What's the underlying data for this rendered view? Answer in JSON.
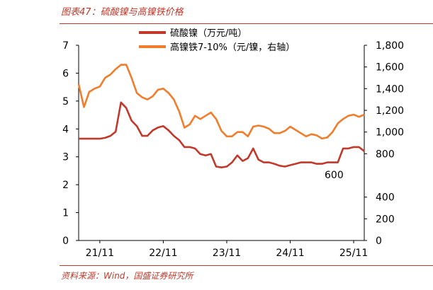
{
  "figure": {
    "title": "图表47：硫酸镍与高镍铁价格",
    "source": "资料来源：Wind，国盛证券研究所"
  },
  "chart_data": {
    "type": "line",
    "x_ticks": [
      "21/11",
      "22/11",
      "23/11",
      "24/11",
      "25/11"
    ],
    "x_range": [
      "2021-07",
      "2026-01"
    ],
    "y_left": {
      "range": [
        0,
        7
      ],
      "ticks": [
        "0",
        "1",
        "2",
        "3",
        "4",
        "5",
        "6",
        "7"
      ]
    },
    "y_right": {
      "range": [
        0,
        1800
      ],
      "ticks": [
        "0",
        "200",
        "400",
        "800",
        "1,000",
        "1,200",
        "1,400",
        "1,600",
        "1,800"
      ]
    },
    "grid": false,
    "legend_position": "top-center",
    "annotations": [
      {
        "text": "600"
      }
    ],
    "series": [
      {
        "name": "硫酸镍（万元/吨）",
        "axis": "left",
        "color": "#c0392b",
        "points": [
          [
            "2021-07",
            3.65
          ],
          [
            "2021-08",
            3.65
          ],
          [
            "2021-09",
            3.65
          ],
          [
            "2021-10",
            3.65
          ],
          [
            "2021-11",
            3.65
          ],
          [
            "2021-12",
            3.68
          ],
          [
            "2022-01",
            3.75
          ],
          [
            "2022-02",
            3.9
          ],
          [
            "2022-03",
            4.95
          ],
          [
            "2022-04",
            4.75
          ],
          [
            "2022-05",
            4.3
          ],
          [
            "2022-06",
            4.1
          ],
          [
            "2022-07",
            3.75
          ],
          [
            "2022-08",
            3.75
          ],
          [
            "2022-09",
            3.95
          ],
          [
            "2022-10",
            4.05
          ],
          [
            "2022-11",
            4.1
          ],
          [
            "2022-12",
            3.95
          ],
          [
            "2023-01",
            3.75
          ],
          [
            "2023-02",
            3.6
          ],
          [
            "2023-03",
            3.35
          ],
          [
            "2023-04",
            3.35
          ],
          [
            "2023-05",
            3.3
          ],
          [
            "2023-06",
            3.1
          ],
          [
            "2023-07",
            3.05
          ],
          [
            "2023-08",
            3.1
          ],
          [
            "2023-09",
            2.65
          ],
          [
            "2023-10",
            2.62
          ],
          [
            "2023-11",
            2.65
          ],
          [
            "2023-12",
            2.8
          ],
          [
            "2024-01",
            3.05
          ],
          [
            "2024-02",
            2.85
          ],
          [
            "2024-03",
            2.95
          ],
          [
            "2024-04",
            3.3
          ],
          [
            "2024-05",
            2.9
          ],
          [
            "2024-06",
            2.8
          ],
          [
            "2024-07",
            2.8
          ],
          [
            "2024-08",
            2.75
          ],
          [
            "2024-09",
            2.68
          ],
          [
            "2024-10",
            2.65
          ],
          [
            "2024-11",
            2.7
          ],
          [
            "2024-12",
            2.75
          ],
          [
            "2025-01",
            2.8
          ],
          [
            "2025-02",
            2.8
          ],
          [
            "2025-03",
            2.8
          ],
          [
            "2025-04",
            2.75
          ],
          [
            "2025-05",
            2.75
          ],
          [
            "2025-06",
            2.8
          ],
          [
            "2025-07",
            2.8
          ],
          [
            "2025-08",
            2.8
          ],
          [
            "2025-09",
            3.3
          ],
          [
            "2025-10",
            3.3
          ],
          [
            "2025-11",
            3.35
          ],
          [
            "2025-12",
            3.35
          ],
          [
            "2026-01",
            3.2
          ]
        ]
      },
      {
        "name": "高镍铁7-10%（元/镍，右轴）",
        "axis": "right",
        "color": "#f07d2b",
        "points": [
          [
            "2021-07",
            1440
          ],
          [
            "2021-08",
            1230
          ],
          [
            "2021-09",
            1370
          ],
          [
            "2021-10",
            1400
          ],
          [
            "2021-11",
            1420
          ],
          [
            "2021-12",
            1500
          ],
          [
            "2022-01",
            1530
          ],
          [
            "2022-02",
            1580
          ],
          [
            "2022-03",
            1620
          ],
          [
            "2022-04",
            1620
          ],
          [
            "2022-05",
            1500
          ],
          [
            "2022-06",
            1360
          ],
          [
            "2022-07",
            1320
          ],
          [
            "2022-08",
            1300
          ],
          [
            "2022-09",
            1330
          ],
          [
            "2022-10",
            1390
          ],
          [
            "2022-11",
            1400
          ],
          [
            "2022-12",
            1360
          ],
          [
            "2023-01",
            1300
          ],
          [
            "2023-02",
            1190
          ],
          [
            "2023-03",
            1040
          ],
          [
            "2023-04",
            1070
          ],
          [
            "2023-05",
            1150
          ],
          [
            "2023-06",
            1120
          ],
          [
            "2023-07",
            1150
          ],
          [
            "2023-08",
            1180
          ],
          [
            "2023-09",
            1120
          ],
          [
            "2023-10",
            1010
          ],
          [
            "2023-11",
            960
          ],
          [
            "2023-12",
            960
          ],
          [
            "2024-01",
            1000
          ],
          [
            "2024-02",
            1000
          ],
          [
            "2024-03",
            960
          ],
          [
            "2024-04",
            1050
          ],
          [
            "2024-05",
            1060
          ],
          [
            "2024-06",
            1050
          ],
          [
            "2024-07",
            1030
          ],
          [
            "2024-08",
            990
          ],
          [
            "2024-09",
            990
          ],
          [
            "2024-10",
            1010
          ],
          [
            "2024-11",
            1050
          ],
          [
            "2024-12",
            1020
          ],
          [
            "2025-01",
            990
          ],
          [
            "2025-02",
            960
          ],
          [
            "2025-03",
            980
          ],
          [
            "2025-04",
            970
          ],
          [
            "2025-05",
            940
          ],
          [
            "2025-06",
            950
          ],
          [
            "2025-07",
            1000
          ],
          [
            "2025-08",
            1080
          ],
          [
            "2025-09",
            1120
          ],
          [
            "2025-10",
            1150
          ],
          [
            "2025-11",
            1160
          ],
          [
            "2025-12",
            1140
          ],
          [
            "2026-01",
            1160
          ]
        ]
      }
    ]
  }
}
